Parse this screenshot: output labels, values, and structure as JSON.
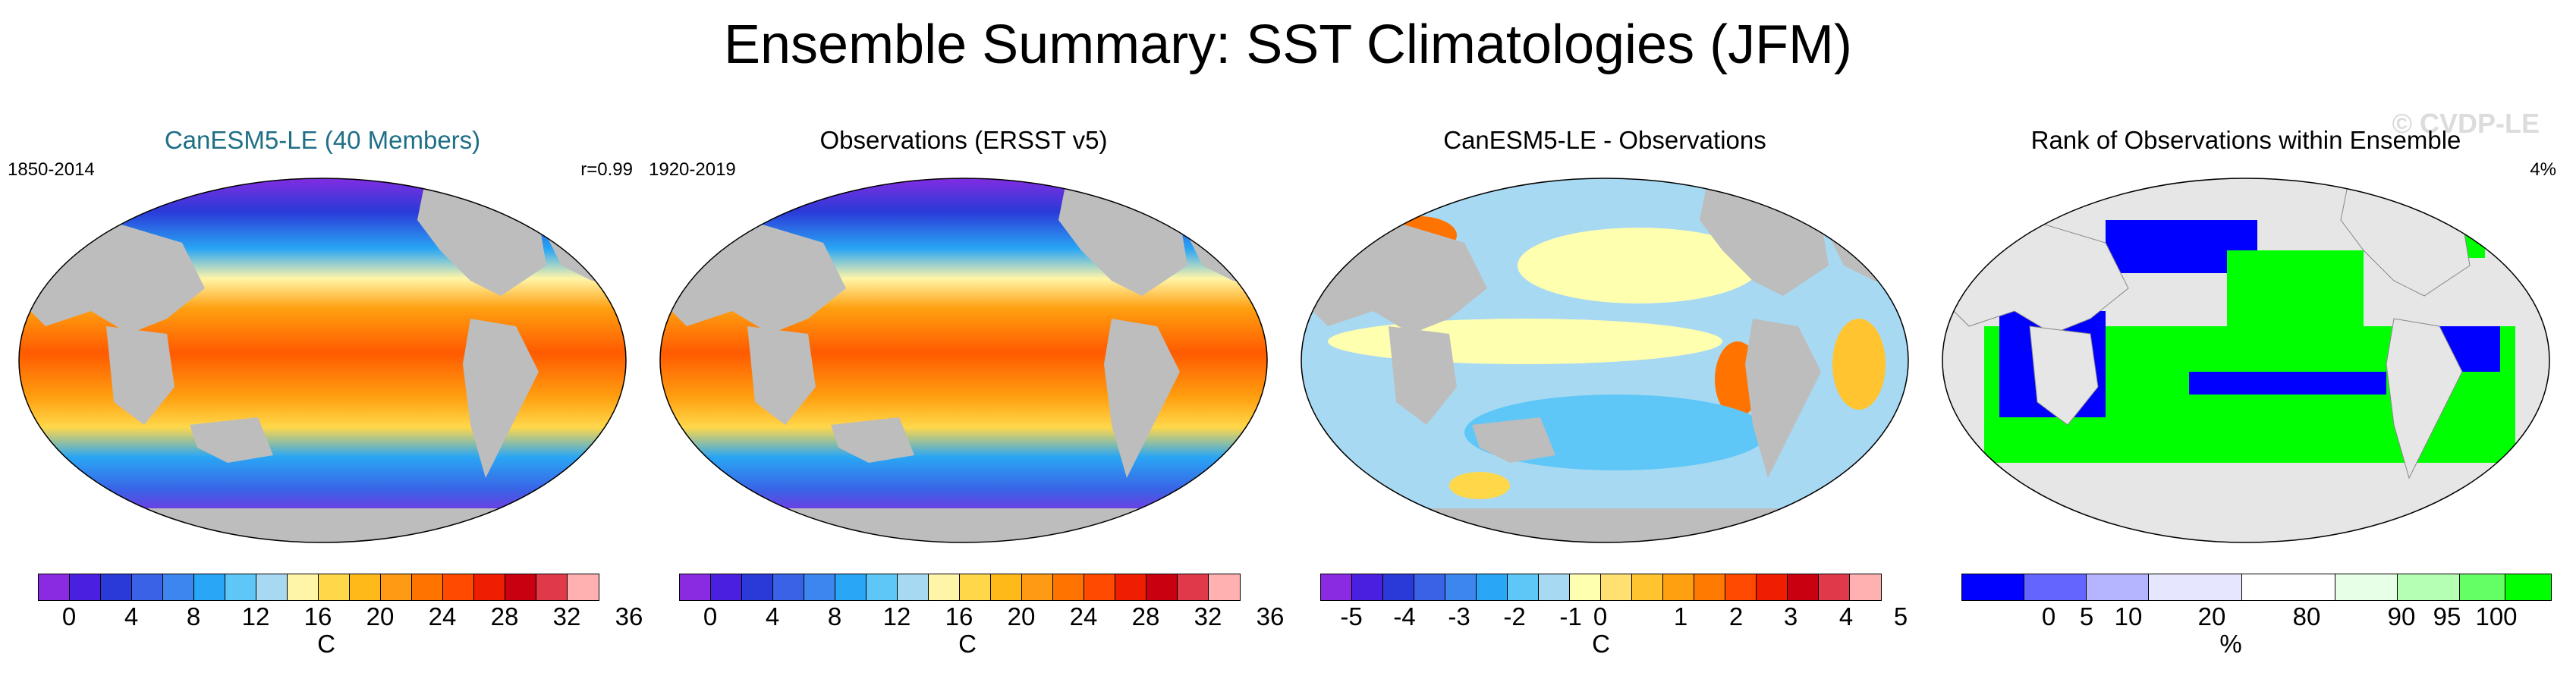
{
  "title": "Ensemble Summary: SST Climatologies (JFM)",
  "watermark": "© CVDP-LE",
  "panels": [
    {
      "title": "CanESM5-LE (40 Members)",
      "left_label": "1850-2014",
      "right_label": "r=0.99",
      "unit": "C",
      "ticks": [
        "0",
        "4",
        "8",
        "12",
        "16",
        "20",
        "24",
        "28",
        "32",
        "36"
      ],
      "colors": [
        "#8a2be2",
        "#4b1fe0",
        "#2a3ad8",
        "#3a62e6",
        "#3d86f0",
        "#29a6f5",
        "#5ec7f7",
        "#a8d9f2",
        "#fff5a8",
        "#ffd84a",
        "#ffba1a",
        "#ff9a14",
        "#ff7400",
        "#ff4a00",
        "#f01e00",
        "#c80010",
        "#e03a4a",
        "#ffb0b0"
      ]
    },
    {
      "title": "Observations (ERSST v5)",
      "left_label": "1920-2019",
      "right_label": "",
      "unit": "C",
      "ticks": [
        "0",
        "4",
        "8",
        "12",
        "16",
        "20",
        "24",
        "28",
        "32",
        "36"
      ],
      "colors": [
        "#8a2be2",
        "#4b1fe0",
        "#2a3ad8",
        "#3a62e6",
        "#3d86f0",
        "#29a6f5",
        "#5ec7f7",
        "#a8d9f2",
        "#fff5a8",
        "#ffd84a",
        "#ffba1a",
        "#ff9a14",
        "#ff7400",
        "#ff4a00",
        "#f01e00",
        "#c80010",
        "#e03a4a",
        "#ffb0b0"
      ]
    },
    {
      "title": "CanESM5-LE - Observations",
      "left_label": "",
      "right_label": "",
      "unit": "C",
      "ticks": [
        "-5",
        "-4",
        "-3",
        "-2",
        "-1",
        "0",
        "1",
        "2",
        "3",
        "4",
        "5"
      ],
      "colors": [
        "#8a2be2",
        "#4b1fe0",
        "#2a3ad8",
        "#3a62e6",
        "#3d86f0",
        "#29a6f5",
        "#5ec7f7",
        "#a8d9f2",
        "#ffffb0",
        "#ffe070",
        "#ffc430",
        "#ffa010",
        "#ff7a00",
        "#ff4a00",
        "#f01e00",
        "#c80010",
        "#e03a4a",
        "#ffb0b0"
      ]
    },
    {
      "title": "Rank of Observations within Ensemble",
      "left_label": "",
      "right_label": "4%",
      "unit": "%",
      "ticks": [
        "0",
        "5",
        "10",
        "20",
        "80",
        "90",
        "95",
        "100"
      ],
      "colors": [
        "#0000ff",
        "#6464ff",
        "#b4b4ff",
        "#e6e6ff",
        "#ffffff",
        "#e6ffe6",
        "#b4ffb4",
        "#64ff64",
        "#00ff00"
      ]
    }
  ]
}
